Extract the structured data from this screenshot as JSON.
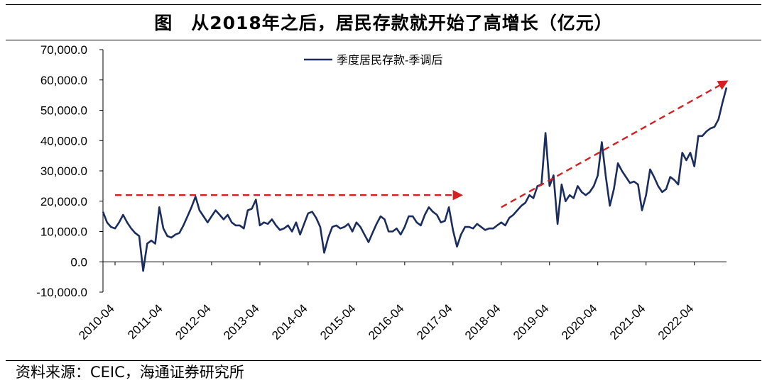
{
  "title": "图　从2018年之后，居民存款就开始了高增长（亿元）",
  "source": "资料来源：CEIC，海通证券研究所",
  "colors": {
    "line": "#1a2d5e",
    "arrow": "#d42020",
    "axis": "#000000"
  },
  "chart_data": {
    "type": "line",
    "legend_position": "top-center",
    "grid": false,
    "y_ticks": [
      "70,000.0",
      "60,000.0",
      "50,000.0",
      "40,000.0",
      "30,000.0",
      "20,000.0",
      "10,000.0",
      "0.0",
      "-10,000.0"
    ],
    "ylim": [
      -10000,
      70000
    ],
    "x_ticks": [
      "2010-04",
      "2011-04",
      "2012-04",
      "2013-04",
      "2014-04",
      "2015-04",
      "2016-04",
      "2017-04",
      "2018-04",
      "2019-04",
      "2020-04",
      "2021-04",
      "2022-04"
    ],
    "series": [
      {
        "name": "季度居民存款-季调后",
        "x_start": "2010-01",
        "frequency": "monthly",
        "values": [
          16500,
          13000,
          11500,
          11000,
          13000,
          15500,
          13000,
          11000,
          9500,
          8500,
          -3000,
          6000,
          7000,
          6000,
          18000,
          11000,
          8500,
          8000,
          9000,
          9500,
          12000,
          15000,
          18000,
          21500,
          17000,
          15000,
          13000,
          15000,
          17000,
          15500,
          14000,
          15500,
          13000,
          12000,
          12000,
          11000,
          17000,
          17500,
          20500,
          12000,
          13000,
          12500,
          14000,
          12000,
          10500,
          11000,
          12000,
          10000,
          13000,
          9000,
          12500,
          16000,
          16500,
          14500,
          11500,
          3000,
          8000,
          11500,
          12000,
          11000,
          11500,
          12500,
          10000,
          13000,
          11500,
          9000,
          6500,
          9500,
          12500,
          15000,
          14000,
          10000,
          10000,
          11000,
          9000,
          11500,
          15000,
          15000,
          13000,
          12000,
          15500,
          18000,
          16500,
          15500,
          13000,
          13500,
          18000,
          10500,
          5000,
          9000,
          11500,
          11500,
          11000,
          12500,
          11500,
          10500,
          11000,
          11000,
          12000,
          13000,
          12000,
          14500,
          15500,
          17000,
          18500,
          19500,
          22000,
          21000,
          25000,
          25500,
          42500,
          25000,
          28500,
          12500,
          25500,
          20000,
          22000,
          21000,
          25000,
          23000,
          22000,
          23000,
          25000,
          28500,
          39500,
          28000,
          18500,
          24000,
          32500,
          30000,
          28000,
          26000,
          26500,
          25500,
          17000,
          22000,
          30500,
          28000,
          25000,
          23000,
          24000,
          28000,
          27000,
          25500,
          36000,
          33500,
          36000,
          31500,
          41500,
          41500,
          43000,
          44000,
          44500,
          47000,
          52500,
          57500
        ]
      }
    ],
    "annotations": [
      {
        "type": "arrow",
        "style": "dashed",
        "color": "#d42020",
        "from": [
          "2010-04",
          22000
        ],
        "to": [
          "2017-06",
          22000
        ]
      },
      {
        "type": "arrow",
        "style": "dashed",
        "color": "#d42020",
        "from": [
          "2018-04",
          18000
        ],
        "to": [
          "2022-12",
          59500
        ]
      }
    ]
  }
}
